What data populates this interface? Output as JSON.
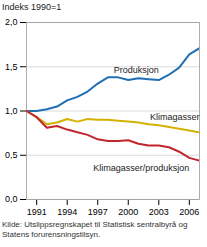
{
  "chart_data": {
    "type": "line",
    "title": "Indeks 1990=1",
    "caption": "Kilde: Utslippsregnskapet til Statistisk sentralbyrå og Statens forurensningstilsyn.",
    "x": [
      1990,
      1991,
      1992,
      1993,
      1994,
      1995,
      1996,
      1997,
      1998,
      1999,
      2000,
      2001,
      2002,
      2003,
      2004,
      2005,
      2006,
      2007
    ],
    "series": [
      {
        "name": "Produksjon",
        "color": "#1f6fb5",
        "values": [
          1.0,
          1.0,
          1.02,
          1.05,
          1.12,
          1.16,
          1.22,
          1.31,
          1.38,
          1.38,
          1.35,
          1.37,
          1.36,
          1.35,
          1.41,
          1.49,
          1.64,
          1.71
        ]
      },
      {
        "name": "Klimagasser",
        "color": "#d4b300",
        "values": [
          1.0,
          0.93,
          0.85,
          0.87,
          0.91,
          0.88,
          0.91,
          0.9,
          0.9,
          0.89,
          0.88,
          0.87,
          0.85,
          0.84,
          0.82,
          0.8,
          0.78,
          0.76
        ]
      },
      {
        "name": "Klimagasser/produksjon",
        "color": "#c0282e",
        "values": [
          1.0,
          0.93,
          0.81,
          0.83,
          0.79,
          0.76,
          0.73,
          0.68,
          0.66,
          0.66,
          0.67,
          0.63,
          0.61,
          0.61,
          0.59,
          0.54,
          0.47,
          0.44
        ]
      }
    ],
    "xlim": [
      1990,
      2007
    ],
    "xticks": [
      1991,
      1994,
      1997,
      2000,
      2003,
      2006
    ],
    "ylim": [
      0,
      2
    ],
    "yticks": [
      {
        "value": 0,
        "label": "0,0"
      },
      {
        "value": 0.5,
        "label": "0,5"
      },
      {
        "value": 1,
        "label": "1,0"
      },
      {
        "value": 1.5,
        "label": "1,5"
      },
      {
        "value": 2,
        "label": "2,0"
      }
    ],
    "grid": true
  }
}
